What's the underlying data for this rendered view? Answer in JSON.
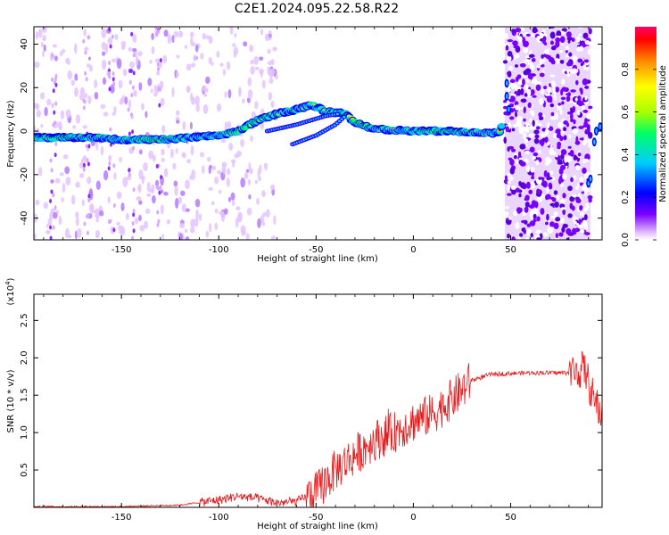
{
  "title": "C2E1.2024.095.22.58.R22",
  "chart_data": [
    {
      "type": "heatmap",
      "xlabel": "Height of straight line (km)",
      "ylabel": "Frequency (Hz)",
      "xlim": [
        -195,
        97
      ],
      "ylim": [
        -50,
        48
      ],
      "xticks": [
        -150,
        -100,
        -50,
        0,
        50
      ],
      "yticks": [
        -40,
        -20,
        0,
        20,
        40
      ],
      "colorbar": {
        "label": "Normalized spectral amplitude",
        "range": [
          0.0,
          1.0
        ],
        "ticks": [
          "0.0",
          "0.2",
          "0.4",
          "0.6",
          "0.8"
        ],
        "colors": [
          "#ffffff",
          "#e8c6ff",
          "#7a00ff",
          "#0000ff",
          "#00ccff",
          "#00ff66",
          "#aaff00",
          "#ffff00",
          "#ff8800",
          "#ff0000",
          "#ff0066"
        ]
      },
      "main_ridge": [
        {
          "x": -195,
          "y": -3
        },
        {
          "x": -180,
          "y": -3
        },
        {
          "x": -160,
          "y": -3
        },
        {
          "x": -150,
          "y": -4
        },
        {
          "x": -130,
          "y": -4
        },
        {
          "x": -115,
          "y": -3
        },
        {
          "x": -100,
          "y": -2
        },
        {
          "x": -90,
          "y": 0
        },
        {
          "x": -80,
          "y": 5
        },
        {
          "x": -70,
          "y": 8
        },
        {
          "x": -60,
          "y": 10
        },
        {
          "x": -52,
          "y": 12
        },
        {
          "x": -45,
          "y": 9
        },
        {
          "x": -35,
          "y": 8
        },
        {
          "x": -30,
          "y": 4
        },
        {
          "x": -20,
          "y": 1
        },
        {
          "x": 0,
          "y": 0
        },
        {
          "x": 20,
          "y": 0
        },
        {
          "x": 40,
          "y": -1
        },
        {
          "x": 45,
          "y": 0
        },
        {
          "x": 48,
          "y": 20
        },
        {
          "x": 90,
          "y": -25
        },
        {
          "x": 95,
          "y": 2
        }
      ],
      "secondary_ridges": [
        [
          {
            "x": -75,
            "y": 0
          },
          {
            "x": -60,
            "y": 3
          },
          {
            "x": -45,
            "y": 7
          },
          {
            "x": -38,
            "y": 8
          }
        ],
        [
          {
            "x": -62,
            "y": -6
          },
          {
            "x": -50,
            "y": -2
          },
          {
            "x": -40,
            "y": 3
          },
          {
            "x": -35,
            "y": 7
          }
        ]
      ],
      "noise_band_x": [
        47,
        91
      ]
    },
    {
      "type": "line",
      "xlabel": "Height of straight line (km)",
      "ylabel": "SNR (10 * v/v)",
      "exponent_label": "(x10",
      "exponent_sup": "4",
      "exponent_close": ")",
      "xlim": [
        -195,
        97
      ],
      "ylim": [
        0,
        2.85
      ],
      "xticks": [
        -150,
        -100,
        -50,
        0,
        50
      ],
      "yticks": [
        0.5,
        1.0,
        1.5,
        2.0,
        2.5
      ],
      "series": [
        {
          "color": "#e8191b",
          "trend": [
            {
              "x": -195,
              "y": 0.01
            },
            {
              "x": -150,
              "y": 0.01
            },
            {
              "x": -120,
              "y": 0.03
            },
            {
              "x": -100,
              "y": 0.1
            },
            {
              "x": -90,
              "y": 0.15
            },
            {
              "x": -80,
              "y": 0.12
            },
            {
              "x": -70,
              "y": 0.06
            },
            {
              "x": -60,
              "y": 0.08
            },
            {
              "x": -50,
              "y": 0.2
            },
            {
              "x": -45,
              "y": 0.35
            },
            {
              "x": -40,
              "y": 0.5
            },
            {
              "x": -30,
              "y": 0.7
            },
            {
              "x": -20,
              "y": 0.9
            },
            {
              "x": -10,
              "y": 1.0
            },
            {
              "x": 0,
              "y": 1.15
            },
            {
              "x": 10,
              "y": 1.25
            },
            {
              "x": 20,
              "y": 1.45
            },
            {
              "x": 30,
              "y": 1.7
            },
            {
              "x": 40,
              "y": 1.78
            },
            {
              "x": 60,
              "y": 1.8
            },
            {
              "x": 80,
              "y": 1.8
            },
            {
              "x": 88,
              "y": 1.85
            },
            {
              "x": 92,
              "y": 1.5
            },
            {
              "x": 97,
              "y": 1.2
            }
          ]
        }
      ]
    }
  ]
}
